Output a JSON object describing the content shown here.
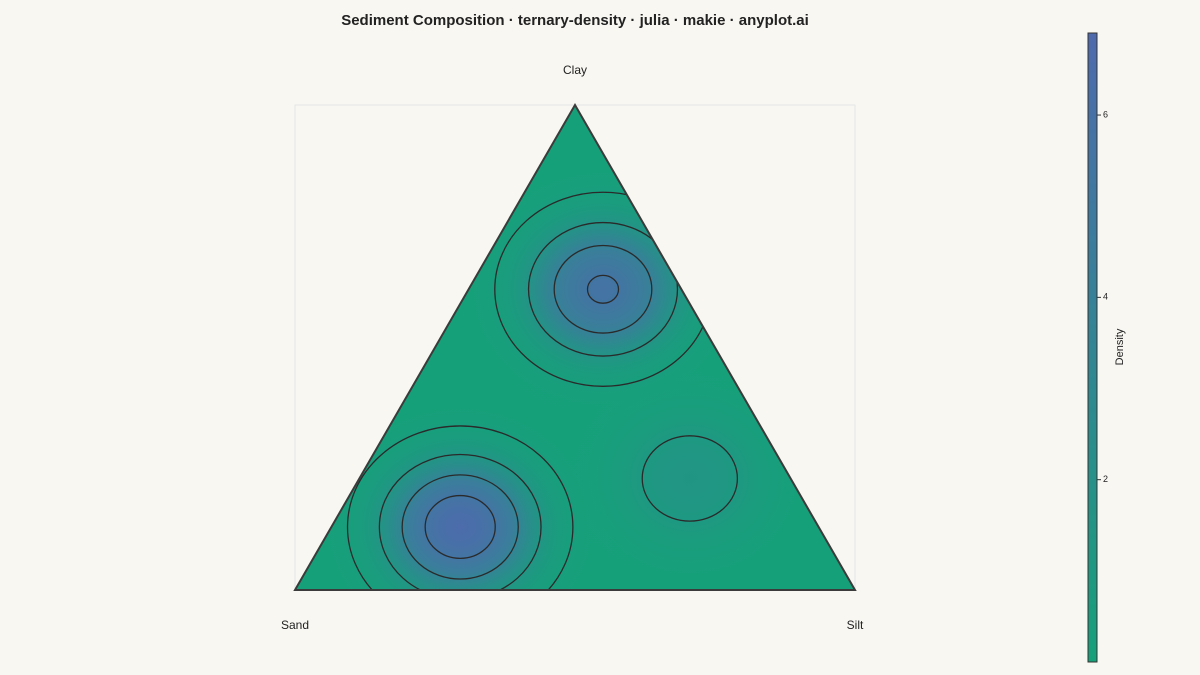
{
  "chart_data": {
    "type": "ternary-density",
    "title": "Sediment Composition · ternary-density · julia · makie · anyplot.ai",
    "corner_labels": {
      "sand": "Sand",
      "silt": "Silt",
      "clay": "Clay"
    },
    "hotspots": [
      {
        "sand": 64,
        "silt": 23,
        "clay": 13,
        "density": 6.6
      },
      {
        "sand": 14,
        "silt": 24,
        "clay": 62,
        "density": 5.7
      },
      {
        "sand": 18,
        "silt": 59,
        "clay": 23,
        "density": 1.4
      }
    ],
    "contour_levels": [
      1,
      2.5,
      4,
      5.5
    ],
    "colorbar_label": "Density",
    "clim": [
      0,
      6.9
    ],
    "cticks": [
      2,
      4,
      6
    ],
    "colormap": [
      "#16a07a",
      "#4e6aad"
    ]
  }
}
